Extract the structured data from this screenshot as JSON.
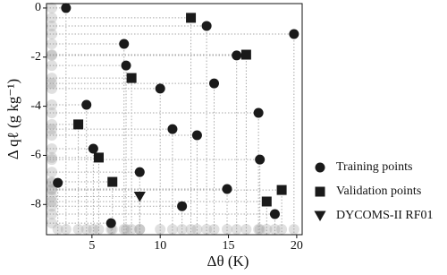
{
  "chart_data": {
    "type": "scatter",
    "xlabel": "Δθ (K)",
    "ylabel": "Δ qℓ (g kg⁻¹)",
    "xlim": [
      1.67,
      20.4
    ],
    "ylim": [
      -9.23,
      0.18
    ],
    "xticks": [
      5,
      10,
      15,
      20
    ],
    "yticks": [
      0,
      -2,
      -4,
      -6,
      -8
    ],
    "guides": true,
    "series": [
      {
        "name": "Training points",
        "color": "#1a1a1a",
        "marker": "circle",
        "x": [
          3.1,
          7.35,
          13.4,
          19.8,
          15.6,
          7.5,
          13.95,
          10.0,
          4.6,
          17.2,
          10.9,
          12.7,
          5.1,
          17.3,
          8.5,
          2.5,
          14.9,
          11.6,
          18.4,
          6.4
        ],
        "y": [
          0,
          -1.46,
          -0.73,
          -1.06,
          -1.93,
          -2.34,
          -3.07,
          -3.28,
          -3.94,
          -4.27,
          -4.93,
          -5.18,
          -5.73,
          -6.17,
          -6.68,
          -7.12,
          -7.37,
          -8.07,
          -8.39,
          -8.76
        ]
      },
      {
        "name": "Validation points",
        "color": "#1a1a1a",
        "marker": "square",
        "x": [
          12.25,
          16.3,
          7.9,
          4.0,
          5.5,
          6.5,
          18.9,
          17.8
        ],
        "y": [
          -0.4,
          -1.9,
          -2.85,
          -4.74,
          -6.09,
          -7.08,
          -7.41,
          -7.88
        ]
      },
      {
        "name": "DYCOMS-II RF01",
        "color": "#1a1a1a",
        "marker": "triangle-down",
        "x": [
          8.5
        ],
        "y": [
          -7.68
        ]
      }
    ]
  }
}
